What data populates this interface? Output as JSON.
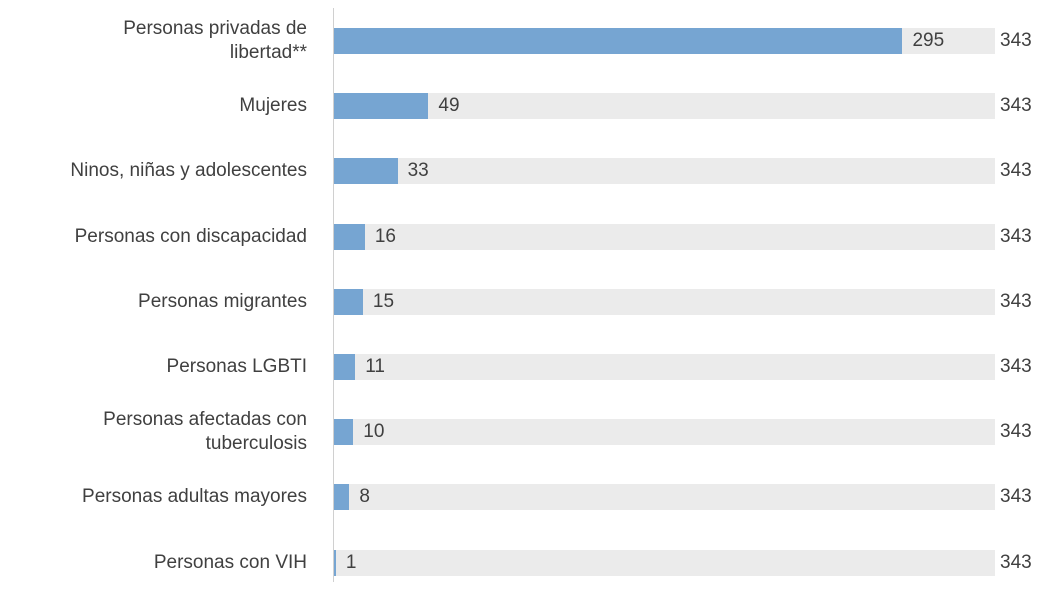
{
  "chart_data": {
    "type": "bar",
    "orientation": "horizontal",
    "categories": [
      "Personas privadas de\nlibertad**",
      "Mujeres",
      "Ninos, niñas y adolescentes",
      "Personas con discapacidad",
      "Personas migrantes",
      "Personas LGBTI",
      "Personas afectadas con\ntuberculosis",
      "Personas adultas mayores",
      "Personas con VIH"
    ],
    "series": [
      {
        "color": "#76a5d2",
        "values": [
          295,
          49,
          33,
          16,
          15,
          11,
          10,
          8,
          1
        ]
      },
      {
        "color": "#ebebeb",
        "values": [
          343,
          343,
          343,
          343,
          343,
          343,
          343,
          343,
          343
        ]
      }
    ]
  }
}
